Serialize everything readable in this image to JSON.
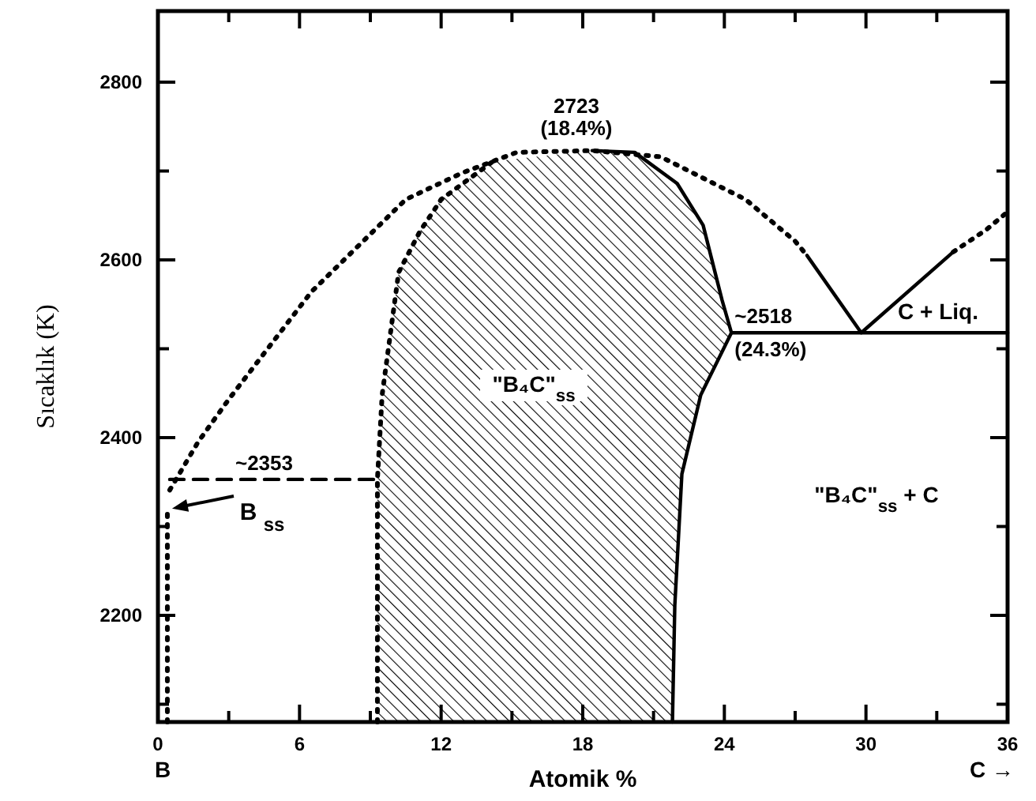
{
  "chart_data": {
    "type": "line",
    "xlabel": "Atomik %",
    "ylabel": "Sıcaklık (K)",
    "xlim": [
      0,
      36
    ],
    "ylim": [
      2080,
      2880
    ],
    "xticks": [
      0,
      {
        "value": 3,
        "label": null
      },
      6,
      {
        "value": 9,
        "label": null
      },
      12,
      {
        "value": 15,
        "label": null
      },
      18,
      {
        "value": 21,
        "label": null
      },
      24,
      {
        "value": 27,
        "label": null
      },
      30,
      {
        "value": 33,
        "label": null
      },
      36
    ],
    "yticks": [
      {
        "value": 2100,
        "label": null
      },
      2200,
      {
        "value": 2300,
        "label": null
      },
      2400,
      {
        "value": 2500,
        "label": null
      },
      2600,
      {
        "value": 2700,
        "label": null
      },
      2800
    ],
    "grid": false,
    "marker": "none",
    "series": [
      {
        "color": "#000000",
        "line_style": "dotted",
        "x": [
          0.5,
          1.7,
          3,
          6.5,
          10.5,
          12.9,
          15.2,
          18.4,
          21.3,
          24.9,
          27,
          27.5
        ],
        "values": [
          2341,
          2395,
          2443,
          2564,
          2668,
          2698,
          2721,
          2723,
          2716,
          2668,
          2621,
          2605
        ]
      },
      {
        "color": "#000000",
        "line_style": "solid",
        "x": [
          27.5,
          29.8,
          33.7
        ],
        "values": [
          2605,
          2518,
          2609
        ]
      },
      {
        "color": "#000000",
        "line_style": "dotted",
        "x": [
          33.7,
          35.1,
          36
        ],
        "values": [
          2609,
          2634,
          2654
        ]
      },
      {
        "color": "#000000",
        "line_style": "solid",
        "x": [
          24.3,
          36
        ],
        "values": [
          2518,
          2518
        ]
      },
      {
        "color": "#000000",
        "line_style": "dashed",
        "x": [
          0.5,
          9.3
        ],
        "values": [
          2353,
          2353
        ]
      },
      {
        "color": "#000000",
        "line_style": "dotted",
        "x": [
          0.4,
          0.4
        ],
        "values": [
          2080,
          2322
        ]
      },
      {
        "color": "#000000",
        "line_style": "dotted",
        "x": [
          9.3,
          9.3,
          9.5,
          10.2,
          11.1,
          12,
          14.2
        ],
        "values": [
          2080,
          2353,
          2448,
          2586,
          2632,
          2668,
          2711
        ]
      },
      {
        "color": "#000000",
        "line_style": "solid",
        "x": [
          18.4,
          20.2,
          22,
          23.1,
          23.9,
          24.3,
          23,
          22.2,
          21.9,
          21.8
        ],
        "values": [
          2723,
          2721,
          2686,
          2639,
          2555,
          2518,
          2448,
          2359,
          2211,
          2080
        ]
      }
    ],
    "annotations": [
      {
        "text": "2723\n(18.4%)",
        "x": 18.4,
        "y": 2723
      },
      {
        "text": "~2518\n(24.3%)",
        "x": 24.3,
        "y": 2518
      },
      {
        "text": "~2353",
        "x": 4.5,
        "y": 2353
      },
      "\"B₄C\"$_{ss}$",
      "\"B₄C\"$_{ss}$ + C",
      "C + Liq.",
      "B $_{ss}$",
      "B",
      "C →"
    ]
  }
}
